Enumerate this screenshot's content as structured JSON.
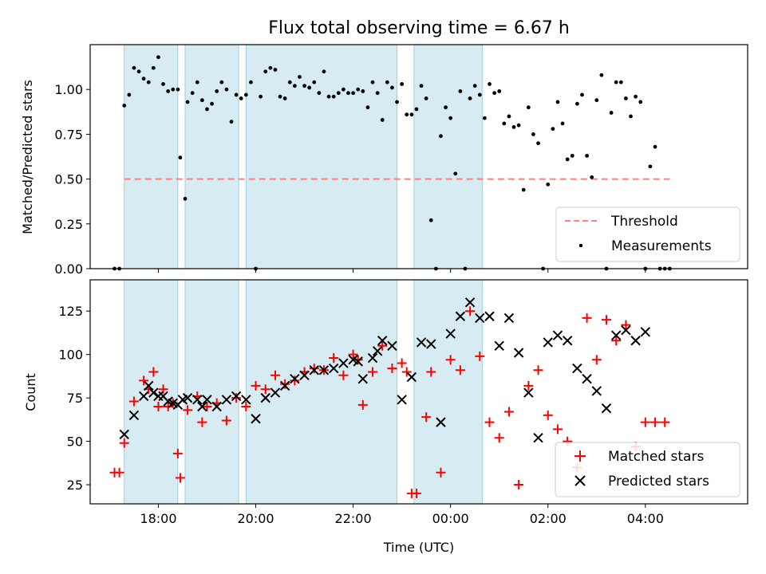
{
  "chart_data": [
    {
      "type": "scatter",
      "title": "Flux total observing time = 6.67 h",
      "xlabel": "",
      "ylabel": "Matched/Predicted stars",
      "ylim": [
        0.0,
        1.25
      ],
      "yticks": [
        "0.00",
        "0.25",
        "0.50",
        "0.75",
        "1.00"
      ],
      "ytick_values": [
        0.0,
        0.25,
        0.5,
        0.75,
        1.0
      ],
      "threshold": {
        "label": "Threshold",
        "y": 0.5,
        "x_start": 17.3,
        "x_end": 28.5,
        "color": "#ff7f7f"
      },
      "legend": [
        "Threshold",
        "Measurements"
      ],
      "series": [
        {
          "name": "Measurements",
          "color": "#000000",
          "x": [
            17.1,
            17.2,
            17.3,
            17.4,
            17.5,
            17.6,
            17.7,
            17.8,
            17.9,
            18.0,
            18.1,
            18.2,
            18.3,
            18.4,
            18.45,
            18.55,
            18.6,
            18.7,
            18.8,
            18.9,
            19.0,
            19.1,
            19.2,
            19.3,
            19.4,
            19.5,
            19.6,
            19.7,
            19.8,
            19.9,
            20.0,
            20.1,
            20.2,
            20.3,
            20.4,
            20.5,
            20.6,
            20.7,
            20.8,
            20.9,
            21.0,
            21.1,
            21.2,
            21.3,
            21.4,
            21.5,
            21.6,
            21.7,
            21.8,
            21.9,
            22.0,
            22.1,
            22.2,
            22.3,
            22.4,
            22.5,
            22.6,
            22.7,
            22.8,
            22.9,
            23.0,
            23.1,
            23.2,
            23.3,
            23.4,
            23.5,
            23.6,
            23.7,
            23.8,
            23.9,
            24.0,
            24.1,
            24.2,
            24.3,
            24.4,
            24.5,
            24.6,
            24.7,
            24.8,
            24.9,
            25.0,
            25.1,
            25.2,
            25.3,
            25.4,
            25.5,
            25.6,
            25.7,
            25.8,
            25.9,
            26.0,
            26.1,
            26.2,
            26.3,
            26.4,
            26.5,
            26.6,
            26.7,
            26.8,
            26.9,
            27.0,
            27.1,
            27.2,
            27.3,
            27.4,
            27.5,
            27.6,
            27.7,
            27.8,
            27.9,
            28.0,
            28.1,
            28.2,
            28.3,
            28.4,
            28.5
          ],
          "y": [
            0.0,
            0.0,
            0.91,
            0.97,
            1.12,
            1.1,
            1.06,
            1.04,
            1.12,
            1.18,
            1.03,
            0.99,
            1.0,
            1.0,
            0.62,
            0.39,
            0.93,
            0.98,
            1.04,
            0.94,
            0.89,
            0.92,
            0.99,
            1.04,
            1.0,
            0.82,
            0.97,
            0.95,
            0.97,
            1.04,
            0.0,
            0.96,
            1.1,
            1.12,
            1.11,
            0.96,
            0.95,
            1.04,
            1.02,
            1.07,
            1.02,
            1.01,
            1.04,
            0.98,
            1.1,
            0.96,
            0.96,
            0.98,
            1.0,
            0.98,
            0.98,
            1.0,
            0.99,
            0.9,
            1.04,
            0.98,
            0.83,
            1.04,
            1.01,
            0.93,
            1.03,
            0.86,
            0.86,
            0.89,
            1.02,
            0.95,
            0.27,
            0.0,
            0.74,
            0.9,
            0.84,
            0.53,
            0.99,
            0.0,
            0.95,
            1.02,
            0.97,
            0.84,
            1.03,
            0.98,
            0.99,
            0.81,
            0.85,
            0.79,
            0.8,
            0.44,
            0.9,
            0.75,
            0.7,
            0.0,
            0.47,
            0.78,
            0.93,
            0.81,
            0.61,
            0.63,
            0.92,
            0.97,
            0.63,
            0.51,
            0.94,
            1.08,
            0.0,
            0.87,
            1.04,
            1.04,
            0.95,
            0.85,
            0.96,
            0.93,
            0.0,
            0.57,
            0.68,
            0.0,
            0.0,
            0.0
          ]
        }
      ]
    },
    {
      "type": "scatter",
      "title": "",
      "xlabel": "Time (UTC)",
      "ylabel": "Count",
      "ylim": [
        14,
        143
      ],
      "yticks": [
        "25",
        "50",
        "75",
        "100",
        "125"
      ],
      "ytick_values": [
        25,
        50,
        75,
        100,
        125
      ],
      "xlim": [
        16.6,
        30.1
      ],
      "xticks": [
        "18:00",
        "20:00",
        "22:00",
        "00:00",
        "02:00",
        "04:00"
      ],
      "xtick_values": [
        18,
        20,
        22,
        24,
        26,
        28
      ],
      "shaded_intervals": [
        [
          17.3,
          18.4
        ],
        [
          18.55,
          19.65
        ],
        [
          19.8,
          22.9
        ],
        [
          23.25,
          24.65
        ]
      ],
      "legend": [
        "Matched stars",
        "Predicted stars"
      ],
      "series": [
        {
          "name": "Matched stars",
          "color": "#ff0000",
          "marker": "+",
          "x": [
            17.1,
            17.2,
            17.3,
            17.5,
            17.7,
            17.8,
            17.9,
            18.0,
            18.1,
            18.2,
            18.3,
            18.4,
            18.45,
            18.6,
            18.8,
            18.9,
            19.0,
            19.2,
            19.4,
            19.6,
            19.8,
            20.0,
            20.2,
            20.4,
            20.6,
            20.8,
            21.0,
            21.2,
            21.4,
            21.6,
            21.8,
            22.0,
            22.1,
            22.2,
            22.4,
            22.6,
            22.8,
            23.0,
            23.1,
            23.2,
            23.3,
            23.5,
            23.6,
            23.8,
            24.0,
            24.2,
            24.4,
            24.6,
            24.8,
            25.0,
            25.2,
            25.4,
            25.6,
            25.8,
            26.0,
            26.2,
            26.4,
            26.6,
            26.8,
            27.0,
            27.2,
            27.4,
            27.6,
            27.8,
            28.0,
            28.2,
            28.4
          ],
          "y": [
            32,
            32,
            49,
            73,
            85,
            80,
            90,
            70,
            80,
            70,
            72,
            43,
            29,
            68,
            76,
            61,
            70,
            72,
            62,
            75,
            70,
            82,
            80,
            88,
            83,
            85,
            90,
            92,
            91,
            98,
            88,
            100,
            97,
            71,
            90,
            105,
            92,
            95,
            90,
            20,
            20,
            64,
            90,
            32,
            97,
            91,
            125,
            99,
            61,
            52,
            67,
            25,
            82,
            91,
            65,
            57,
            50,
            35,
            121,
            97,
            120,
            108,
            117,
            47,
            61,
            61,
            61
          ]
        },
        {
          "name": "Predicted stars",
          "color": "#000000",
          "marker": "x",
          "x": [
            17.3,
            17.5,
            17.7,
            17.8,
            17.9,
            18.0,
            18.1,
            18.2,
            18.3,
            18.4,
            18.5,
            18.6,
            18.8,
            18.9,
            19.0,
            19.2,
            19.4,
            19.6,
            19.8,
            20.0,
            20.2,
            20.4,
            20.6,
            20.8,
            21.0,
            21.2,
            21.4,
            21.6,
            21.8,
            22.0,
            22.1,
            22.2,
            22.4,
            22.5,
            22.6,
            22.8,
            23.0,
            23.2,
            23.4,
            23.6,
            23.8,
            24.0,
            24.2,
            24.4,
            24.6,
            24.8,
            25.0,
            25.2,
            25.4,
            25.6,
            25.8,
            26.0,
            26.2,
            26.4,
            26.6,
            26.8,
            27.0,
            27.2,
            27.4,
            27.6,
            27.8,
            28.0
          ],
          "y": [
            54,
            65,
            76,
            82,
            78,
            76,
            76,
            73,
            72,
            71,
            74,
            75,
            74,
            70,
            74,
            70,
            74,
            76,
            74,
            63,
            75,
            78,
            82,
            86,
            88,
            91,
            91,
            92,
            95,
            97,
            96,
            86,
            98,
            102,
            108,
            105,
            74,
            87,
            107,
            106,
            61,
            112,
            122,
            130,
            121,
            122,
            105,
            121,
            101,
            78,
            52,
            107,
            111,
            108,
            92,
            86,
            79,
            69,
            111,
            114,
            108,
            113
          ]
        }
      ]
    }
  ]
}
